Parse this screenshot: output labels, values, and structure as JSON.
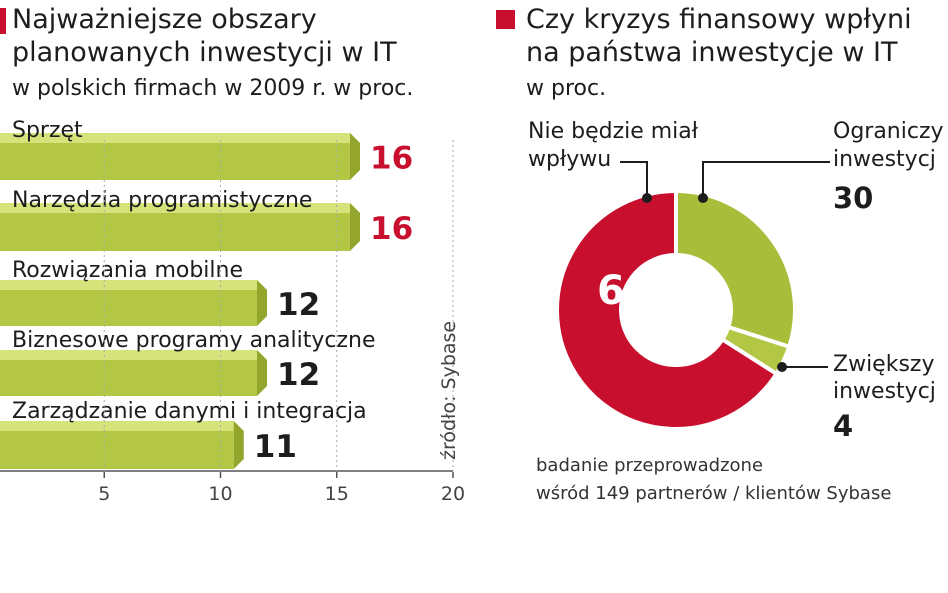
{
  "left": {
    "title_line1": "Najważniejsze obszary",
    "title_line2": "planowanych inwestycji w IT",
    "subtitle": "w polskich firmach w 2009 r. w proc.",
    "source": "źródło: Sybase"
  },
  "right": {
    "title_line1": "Czy kryzys finansowy wpłyni",
    "title_line2": "na państwa inwestycje w IT",
    "subtitle": "w proc.",
    "label_no_effect_line1": "Nie będzie miał",
    "label_no_effect_line2": "wpływu",
    "label_limit_line1": "Ograniczy",
    "label_limit_line2": "inwestycj",
    "label_limit_value": "30",
    "label_increase_line1": "Zwiększy",
    "label_increase_line2": "inwestycj",
    "label_increase_value": "4",
    "center_value": "66",
    "note_line1": "badanie przeprowadzone",
    "note_line2": "wśród 149 partnerów / klientów Sybase"
  },
  "colors": {
    "accent": "#c8102e",
    "bar_fill": "#b3c745",
    "bar_top": "#d6e27a",
    "bar_side": "#93a52c",
    "donut_green": "#a8bd3a"
  },
  "chart_data": [
    {
      "type": "bar",
      "orientation": "horizontal",
      "title": "Najważniejsze obszary planowanych inwestycji w IT",
      "subtitle": "w polskich firmach w 2009 r. w proc.",
      "categories": [
        "Sprzęt",
        "Narzędzia programistyczne",
        "Rozwiązania mobilne",
        "Biznesowe programy analityczne",
        "Zarządzanie danymi i integracja"
      ],
      "values": [
        16,
        16,
        12,
        12,
        11
      ],
      "value_labels": [
        "16",
        "16",
        "12",
        "12",
        "11"
      ],
      "highlight": [
        true,
        true,
        false,
        false,
        false
      ],
      "xlim": [
        0,
        20
      ],
      "xticks": [
        5,
        10,
        15,
        20
      ],
      "xtick_labels": [
        "5",
        "10",
        "15",
        "20"
      ]
    },
    {
      "type": "pie",
      "title": "Czy kryzys finansowy wpłyni na państwa inwestycje w IT",
      "subtitle": "w proc.",
      "labels": [
        "Ograniczy inwestycj",
        "Zwiększy inwestycj",
        "Nie będzie miał wpływu"
      ],
      "values": [
        30,
        4,
        66
      ],
      "colors": [
        "#a8bd3a",
        "#b3c745",
        "#c8102e"
      ]
    }
  ]
}
